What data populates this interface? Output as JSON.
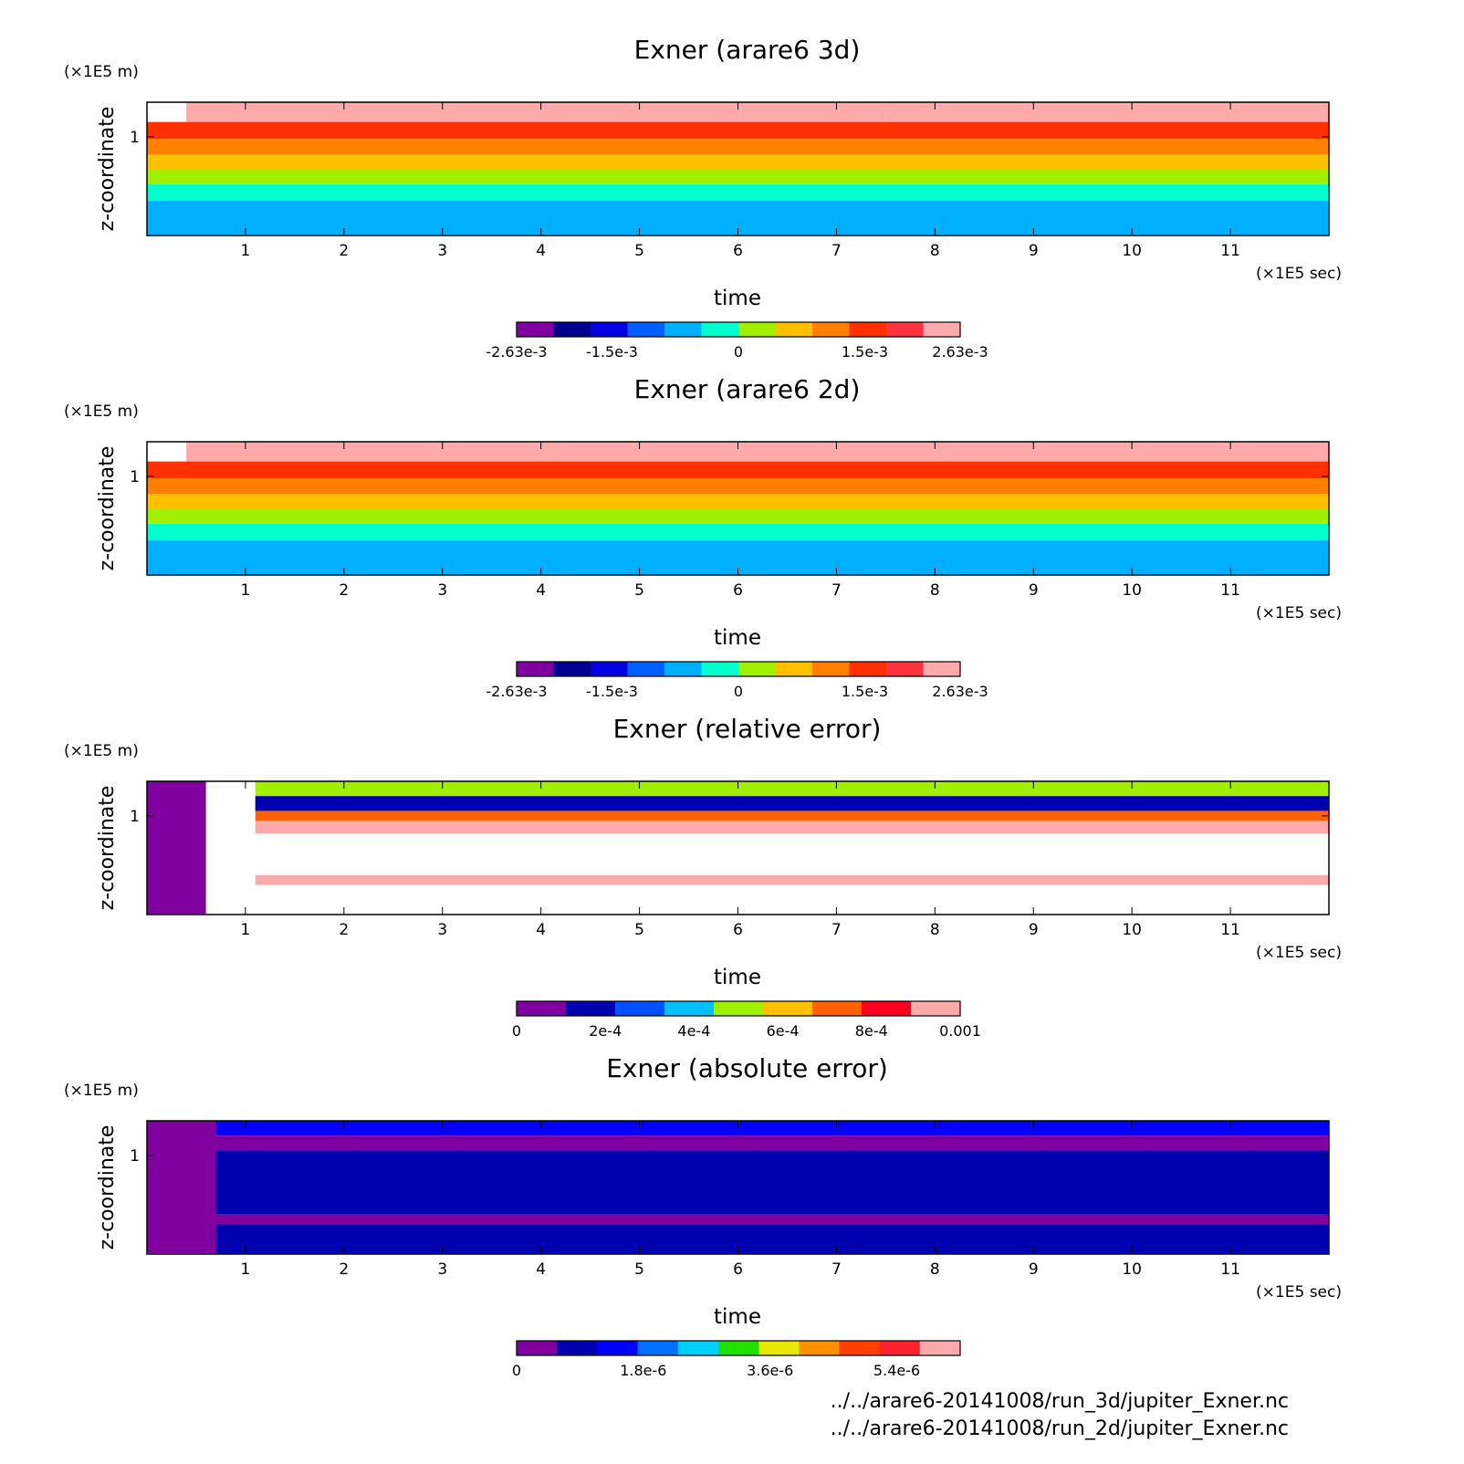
{
  "panels": [
    {
      "title": "Exner (arare6 3d)",
      "ylabel": "z-coordinate",
      "yunit": "(×1E5 m)",
      "xlabel": "time",
      "xunit": "(×1E5 sec)",
      "colorbar": {
        "colors": [
          "#8000a0",
          "#000090",
          "#0000e0",
          "#0060ff",
          "#00b0ff",
          "#00ffcc",
          "#a0f000",
          "#ffc000",
          "#ff8000",
          "#ff3000",
          "#ff3340",
          "#ffaaaa"
        ],
        "ticks": [
          {
            "label": "-2.63e-3",
            "pos": 0.0
          },
          {
            "label": "-1.5e-3",
            "pos": 0.215
          },
          {
            "label": "0",
            "pos": 0.5
          },
          {
            "label": "1.5e-3",
            "pos": 0.785
          },
          {
            "label": "2.63e-3",
            "pos": 1.0
          }
        ]
      }
    },
    {
      "title": "Exner (arare6 2d)",
      "ylabel": "z-coordinate",
      "yunit": "(×1E5 m)",
      "xlabel": "time",
      "xunit": "(×1E5 sec)",
      "colorbar": {
        "colors": [
          "#8000a0",
          "#000090",
          "#0000e0",
          "#0060ff",
          "#00b0ff",
          "#00ffcc",
          "#a0f000",
          "#ffc000",
          "#ff8000",
          "#ff3000",
          "#ff3340",
          "#ffaaaa"
        ],
        "ticks": [
          {
            "label": "-2.63e-3",
            "pos": 0.0
          },
          {
            "label": "-1.5e-3",
            "pos": 0.215
          },
          {
            "label": "0",
            "pos": 0.5
          },
          {
            "label": "1.5e-3",
            "pos": 0.785
          },
          {
            "label": "2.63e-3",
            "pos": 1.0
          }
        ]
      }
    },
    {
      "title": "Exner (relative error)",
      "ylabel": "z-coordinate",
      "yunit": "(×1E5 m)",
      "xlabel": "time",
      "xunit": "(×1E5 sec)",
      "colorbar": {
        "colors": [
          "#8000a0",
          "#0000b0",
          "#0050ff",
          "#00c0ff",
          "#a0f000",
          "#ffc000",
          "#ff6000",
          "#ff0020",
          "#ffaaaa"
        ],
        "ticks": [
          {
            "label": "0",
            "pos": 0.0
          },
          {
            "label": "2e-4",
            "pos": 0.2
          },
          {
            "label": "4e-4",
            "pos": 0.4
          },
          {
            "label": "6e-4",
            "pos": 0.6
          },
          {
            "label": "8e-4",
            "pos": 0.8
          },
          {
            "label": "0.001",
            "pos": 1.0
          }
        ]
      }
    },
    {
      "title": "Exner (absolute error)",
      "ylabel": "z-coordinate",
      "yunit": "(×1E5 m)",
      "xlabel": "time",
      "xunit": "(×1E5 sec)",
      "colorbar": {
        "colors": [
          "#8000a0",
          "#0000b0",
          "#0000ff",
          "#0070ff",
          "#00d0ff",
          "#20e000",
          "#e8e800",
          "#ff9000",
          "#ff4000",
          "#ff2030",
          "#ffaaaa"
        ],
        "ticks": [
          {
            "label": "0",
            "pos": 0.0
          },
          {
            "label": "1.8e-6",
            "pos": 0.2857
          },
          {
            "label": "3.6e-6",
            "pos": 0.5714
          },
          {
            "label": "5.4e-6",
            "pos": 0.8571
          }
        ]
      }
    }
  ],
  "source_files": [
    "../../arare6-20141008/run_3d/jupiter_Exner.nc",
    "../../arare6-20141008/run_2d/jupiter_Exner.nc"
  ],
  "chart_data": [
    {
      "type": "heatmap",
      "title": "Exner (arare6 3d)",
      "xlabel": "time",
      "ylabel": "z-coordinate",
      "x_unit": "(×1E5 sec)",
      "y_unit": "(×1E5 m)",
      "xlim": [
        0,
        12
      ],
      "ylim": [
        0,
        1.35
      ],
      "xticks": [
        1,
        2,
        3,
        4,
        5,
        6,
        7,
        8,
        9,
        10,
        11
      ],
      "yticks": [
        1
      ],
      "color_range": [
        -0.00263,
        0.00263
      ],
      "bands": [
        {
          "z": [
            1.15,
            1.35
          ],
          "value": 0.0025,
          "x_from": 0.4,
          "x_to": 7.5
        },
        {
          "z": [
            1.15,
            1.35
          ],
          "value": 0.0022,
          "x_from": 7.5,
          "x_to": 12
        },
        {
          "z": [
            0.98,
            1.15
          ],
          "value": 0.0017
        },
        {
          "z": [
            0.82,
            0.98
          ],
          "value": 0.0011
        },
        {
          "z": [
            0.67,
            0.82
          ],
          "value": 0.0006
        },
        {
          "z": [
            0.52,
            0.67
          ],
          "value": 0.0002
        },
        {
          "z": [
            0.35,
            0.52
          ],
          "value": -0.0002
        },
        {
          "z": [
            0.0,
            0.35
          ],
          "value": -0.0007
        }
      ]
    },
    {
      "type": "heatmap",
      "title": "Exner (arare6 2d)",
      "xlabel": "time",
      "ylabel": "z-coordinate",
      "x_unit": "(×1E5 sec)",
      "y_unit": "(×1E5 m)",
      "xlim": [
        0,
        12
      ],
      "ylim": [
        0,
        1.35
      ],
      "xticks": [
        1,
        2,
        3,
        4,
        5,
        6,
        7,
        8,
        9,
        10,
        11
      ],
      "yticks": [
        1
      ],
      "color_range": [
        -0.00263,
        0.00263
      ],
      "bands": [
        {
          "z": [
            1.15,
            1.35
          ],
          "value": 0.0025,
          "x_from": 0.4,
          "x_to": 7.45
        },
        {
          "z": [
            1.15,
            1.35
          ],
          "value": 0.0022,
          "x_from": 7.45,
          "x_to": 12
        },
        {
          "z": [
            0.98,
            1.15
          ],
          "value": 0.0017
        },
        {
          "z": [
            0.82,
            0.98
          ],
          "value": 0.0011
        },
        {
          "z": [
            0.67,
            0.82
          ],
          "value": 0.0006
        },
        {
          "z": [
            0.52,
            0.67
          ],
          "value": 0.0002
        },
        {
          "z": [
            0.35,
            0.52
          ],
          "value": -0.0002
        },
        {
          "z": [
            0.0,
            0.35
          ],
          "value": -0.0007
        }
      ]
    },
    {
      "type": "heatmap",
      "title": "Exner (relative error)",
      "xlabel": "time",
      "ylabel": "z-coordinate",
      "x_unit": "(×1E5 sec)",
      "y_unit": "(×1E5 m)",
      "xlim": [
        0,
        12
      ],
      "ylim": [
        0,
        1.35
      ],
      "xticks": [
        1,
        2,
        3,
        4,
        5,
        6,
        7,
        8,
        9,
        10,
        11
      ],
      "yticks": [
        1
      ],
      "color_range": [
        0,
        0.001
      ],
      "bands": [
        {
          "z": [
            0.0,
            1.35
          ],
          "value": 0.0,
          "x_from": 0,
          "x_to": 0.6
        },
        {
          "z": [
            0.0,
            1.35
          ],
          "value": 0.0011,
          "x_from": 0.6,
          "x_to": 1.1
        },
        {
          "z": [
            1.2,
            1.35
          ],
          "value": 0.00045,
          "x_from": 1.1,
          "x_to": 12
        },
        {
          "z": [
            1.05,
            1.2
          ],
          "value": 0.0002,
          "x_from": 1.1,
          "x_to": 12
        },
        {
          "z": [
            0.95,
            1.05
          ],
          "value": 0.0007,
          "x_from": 1.1,
          "x_to": 12
        },
        {
          "z": [
            0.82,
            0.95
          ],
          "value": 0.00095,
          "x_from": 1.1,
          "x_to": 12
        },
        {
          "z": [
            0.4,
            0.82
          ],
          "value": 0.0011,
          "x_from": 1.1,
          "x_to": 12
        },
        {
          "z": [
            0.3,
            0.4
          ],
          "value": 0.0009,
          "x_from": 1.1,
          "x_to": 12
        },
        {
          "z": [
            0.0,
            0.3
          ],
          "value": 0.0011,
          "x_from": 1.1,
          "x_to": 12
        }
      ]
    },
    {
      "type": "heatmap",
      "title": "Exner (absolute error)",
      "xlabel": "time",
      "ylabel": "z-coordinate",
      "x_unit": "(×1E5 sec)",
      "y_unit": "(×1E5 m)",
      "xlim": [
        0,
        12
      ],
      "ylim": [
        0,
        1.35
      ],
      "xticks": [
        1,
        2,
        3,
        4,
        5,
        6,
        7,
        8,
        9,
        10,
        11
      ],
      "yticks": [
        1
      ],
      "color_range": [
        0,
        6.3e-06
      ],
      "bands": [
        {
          "z": [
            0.0,
            1.35
          ],
          "value": 0.0,
          "x_from": 0,
          "x_to": 0.7
        },
        {
          "z": [
            1.2,
            1.35
          ],
          "value": 1.5e-06,
          "x_from": 0.7,
          "x_to": 12
        },
        {
          "z": [
            1.05,
            1.2
          ],
          "value": 3e-07,
          "x_from": 0.7,
          "x_to": 12
        },
        {
          "z": [
            0.4,
            1.05
          ],
          "value": 9e-07,
          "x_from": 0.7,
          "x_to": 12
        },
        {
          "z": [
            0.3,
            0.4
          ],
          "value": 2e-07,
          "x_from": 0.7,
          "x_to": 12
        },
        {
          "z": [
            0.0,
            0.3
          ],
          "value": 9e-07,
          "x_from": 0.7,
          "x_to": 12
        }
      ]
    }
  ]
}
